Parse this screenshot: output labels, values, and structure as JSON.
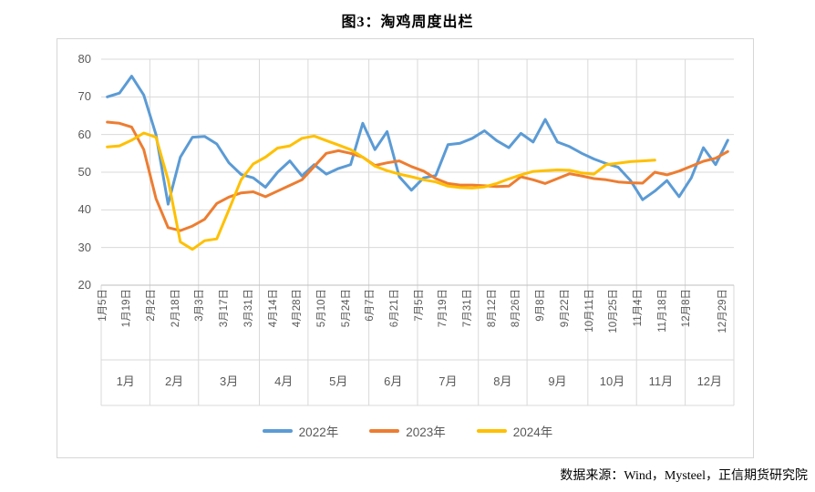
{
  "title": "图3：淘鸡周度出栏",
  "source_note": "数据来源：Wind，Mysteel，正信期货研究院",
  "colors": {
    "series_2022": "#5B9BD5",
    "series_2023": "#ED7D31",
    "series_2024": "#FFC000",
    "gridline": "#D9D9D9",
    "axis_line": "#BFBFBF",
    "axis_text": "#595959"
  },
  "legend": {
    "items": [
      {
        "label": "2022年",
        "color": "#5B9BD5"
      },
      {
        "label": "2023年",
        "color": "#ED7D31"
      },
      {
        "label": "2024年",
        "color": "#FFC000"
      }
    ]
  },
  "chart_data": {
    "type": "line",
    "title": "图3：淘鸡周度出栏",
    "xlabel": "",
    "ylabel": "",
    "grid": true,
    "legend_position": "bottom",
    "y_axis": {
      "min": 20,
      "max": 80,
      "step": 10,
      "ticks": [
        20,
        30,
        40,
        50,
        60,
        70,
        80
      ]
    },
    "x_axis": {
      "total_slots": 52,
      "tick_labels": [
        {
          "label": "1月5日",
          "slot": 0
        },
        {
          "label": "1月19日",
          "slot": 2
        },
        {
          "label": "2月2日",
          "slot": 4
        },
        {
          "label": "2月18日",
          "slot": 6
        },
        {
          "label": "3月3日",
          "slot": 8
        },
        {
          "label": "3月17日",
          "slot": 10
        },
        {
          "label": "3月31日",
          "slot": 12
        },
        {
          "label": "4月14日",
          "slot": 14
        },
        {
          "label": "4月28日",
          "slot": 16
        },
        {
          "label": "5月10日",
          "slot": 18
        },
        {
          "label": "5月24日",
          "slot": 20
        },
        {
          "label": "6月7日",
          "slot": 22
        },
        {
          "label": "6月21日",
          "slot": 24
        },
        {
          "label": "7月5日",
          "slot": 26
        },
        {
          "label": "7月19日",
          "slot": 28
        },
        {
          "label": "7月31日",
          "slot": 30
        },
        {
          "label": "8月12日",
          "slot": 32
        },
        {
          "label": "8月26日",
          "slot": 34
        },
        {
          "label": "9月8日",
          "slot": 36
        },
        {
          "label": "9月22日",
          "slot": 38
        },
        {
          "label": "10月11日",
          "slot": 40
        },
        {
          "label": "10月25日",
          "slot": 42
        },
        {
          "label": "11月4日",
          "slot": 44
        },
        {
          "label": "11月18日",
          "slot": 46
        },
        {
          "label": "12月8日",
          "slot": 48
        },
        {
          "label": "12月29日",
          "slot": 51
        }
      ],
      "month_groups": [
        {
          "label": "1月",
          "start": 0,
          "end": 3
        },
        {
          "label": "2月",
          "start": 4,
          "end": 7
        },
        {
          "label": "3月",
          "start": 8,
          "end": 12
        },
        {
          "label": "4月",
          "start": 13,
          "end": 16
        },
        {
          "label": "5月",
          "start": 17,
          "end": 21
        },
        {
          "label": "6月",
          "start": 22,
          "end": 25
        },
        {
          "label": "7月",
          "start": 26,
          "end": 30
        },
        {
          "label": "8月",
          "start": 31,
          "end": 34
        },
        {
          "label": "9月",
          "start": 35,
          "end": 39
        },
        {
          "label": "10月",
          "start": 40,
          "end": 43
        },
        {
          "label": "11月",
          "start": 44,
          "end": 47
        },
        {
          "label": "12月",
          "start": 48,
          "end": 51
        }
      ]
    },
    "series": [
      {
        "name": "2022年",
        "color": "#5B9BD5",
        "values": [
          70,
          71,
          75.5,
          70.5,
          60,
          41.5,
          54,
          59.3,
          59.5,
          57.5,
          52.5,
          49.4,
          48.5,
          46,
          50,
          53,
          49,
          52,
          49.5,
          51,
          52,
          63,
          56,
          60.8,
          48.8,
          45.2,
          48.5,
          49.1,
          57.3,
          57.7,
          59,
          61,
          58.4,
          56.5,
          60.3,
          58,
          64,
          58,
          56.8,
          55,
          53.5,
          52.3,
          51.3,
          47.8,
          42.7,
          45,
          47.8,
          43.5,
          48.5,
          56.5,
          52,
          58.5
        ]
      },
      {
        "name": "2023年",
        "color": "#ED7D31",
        "values": [
          63.3,
          63,
          62,
          56,
          43,
          35.3,
          34.5,
          35.7,
          37.5,
          41.7,
          43.4,
          44.5,
          44.8,
          43.5,
          45,
          46.5,
          48,
          51.5,
          55,
          55.7,
          55,
          54,
          51.8,
          52.5,
          53,
          51.5,
          50.3,
          48.3,
          47,
          46.6,
          46.6,
          46.4,
          46.2,
          46.3,
          48.8,
          48,
          47,
          48.3,
          49.6,
          49,
          48.3,
          48,
          47.4,
          47.2,
          47.1,
          50,
          49.3,
          50.3,
          51.6,
          52.9,
          53.7,
          55.5
        ]
      },
      {
        "name": "2024年",
        "color": "#FFC000",
        "values": [
          56.7,
          57,
          58.5,
          60.4,
          59.3,
          48,
          31.5,
          29.5,
          31.8,
          32.3,
          40,
          48,
          52.2,
          54,
          56.4,
          57,
          59,
          59.6,
          58.4,
          57.2,
          56,
          54,
          51.6,
          50.4,
          49.5,
          48.8,
          48,
          47.4,
          46.3,
          45.9,
          45.8,
          46.1,
          47,
          48.2,
          49.3,
          50.2,
          50.4,
          50.6,
          50.5,
          49.8,
          49.5,
          52,
          52.4,
          52.8,
          53,
          53.2
        ]
      }
    ]
  }
}
